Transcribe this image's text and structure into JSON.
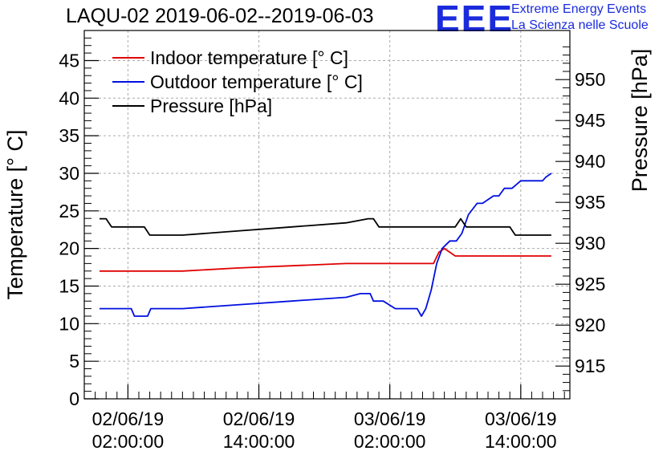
{
  "header": {
    "title": "LAQU-02 2019-06-02--2019-06-03",
    "logo_text": "EEE",
    "logo_line1": "Extreme Energy Events",
    "logo_line2": "La Scienza nelle Scuole"
  },
  "colors": {
    "indoor": "#e00000",
    "outdoor": "#0010e0",
    "pressure": "#000000",
    "logo": "#1b2bdc"
  },
  "chart_data": {
    "type": "line",
    "title": "LAQU-02 2019-06-02--2019-06-03",
    "xlabel": "",
    "ylabel": "Temperature [° C]",
    "y2label": "Pressure [hPa]",
    "xlim_hours": [
      -4,
      40.5
    ],
    "ylim": [
      0,
      49
    ],
    "y2lim": [
      911,
      956
    ],
    "x_ticks": [
      {
        "hours": 0,
        "line1": "02/06/19",
        "line2": "02:00:00"
      },
      {
        "hours": 12,
        "line1": "02/06/19",
        "line2": "14:00:00"
      },
      {
        "hours": 24,
        "line1": "03/06/19",
        "line2": "02:00:00"
      },
      {
        "hours": 36,
        "line1": "03/06/19",
        "line2": "14:00:00"
      }
    ],
    "y_ticks": [
      0,
      5,
      10,
      15,
      20,
      25,
      30,
      35,
      40,
      45
    ],
    "y2_ticks": [
      915,
      920,
      925,
      930,
      935,
      940,
      945,
      950
    ],
    "grid": true,
    "legend_position": "top-left",
    "series": [
      {
        "name": "Indoor temperature [° C]",
        "axis": "left",
        "color": "#e00000",
        "x": [
          -2.6,
          2.5,
          5,
          10,
          15,
          20,
          25,
          28,
          28.5,
          29,
          30,
          31,
          35,
          38.8
        ],
        "values": [
          17,
          17,
          17,
          17.4,
          17.7,
          18,
          18,
          18,
          19.5,
          20,
          19,
          19,
          19,
          19
        ]
      },
      {
        "name": "Outdoor temperature [° C]",
        "axis": "left",
        "color": "#0010e0",
        "x": [
          -2.6,
          0.3,
          0.6,
          1.8,
          2.1,
          5,
          10,
          15,
          20,
          21.3,
          22.2,
          22.5,
          23.4,
          24.5,
          26.5,
          26.9,
          27.3,
          27.8,
          28.3,
          28.8,
          29.5,
          30.1,
          30.6,
          31.2,
          32,
          32.5,
          33.5,
          34,
          34.5,
          35.2,
          36,
          37,
          38,
          38.3,
          38.8
        ],
        "values": [
          12,
          12,
          11,
          11,
          12,
          12,
          12.5,
          13,
          13.5,
          14,
          14,
          13,
          13,
          12,
          12,
          11,
          12,
          14.5,
          18,
          20,
          21,
          21,
          22,
          24.5,
          26,
          26,
          27,
          27,
          28,
          28,
          29,
          29,
          29,
          29.5,
          30
        ]
      },
      {
        "name": "Pressure [hPa]",
        "axis": "right",
        "color": "#000000",
        "x": [
          -2.6,
          -2,
          -1.5,
          1.5,
          2,
          5,
          10,
          15,
          20,
          22,
          22.5,
          23,
          30,
          30.5,
          31,
          32,
          35,
          35.5,
          36,
          38.8
        ],
        "values": [
          933,
          933,
          932,
          932,
          931,
          931,
          931.5,
          932,
          932.5,
          933,
          933,
          932,
          932,
          933,
          932,
          932,
          932,
          931,
          931,
          931
        ]
      }
    ]
  }
}
